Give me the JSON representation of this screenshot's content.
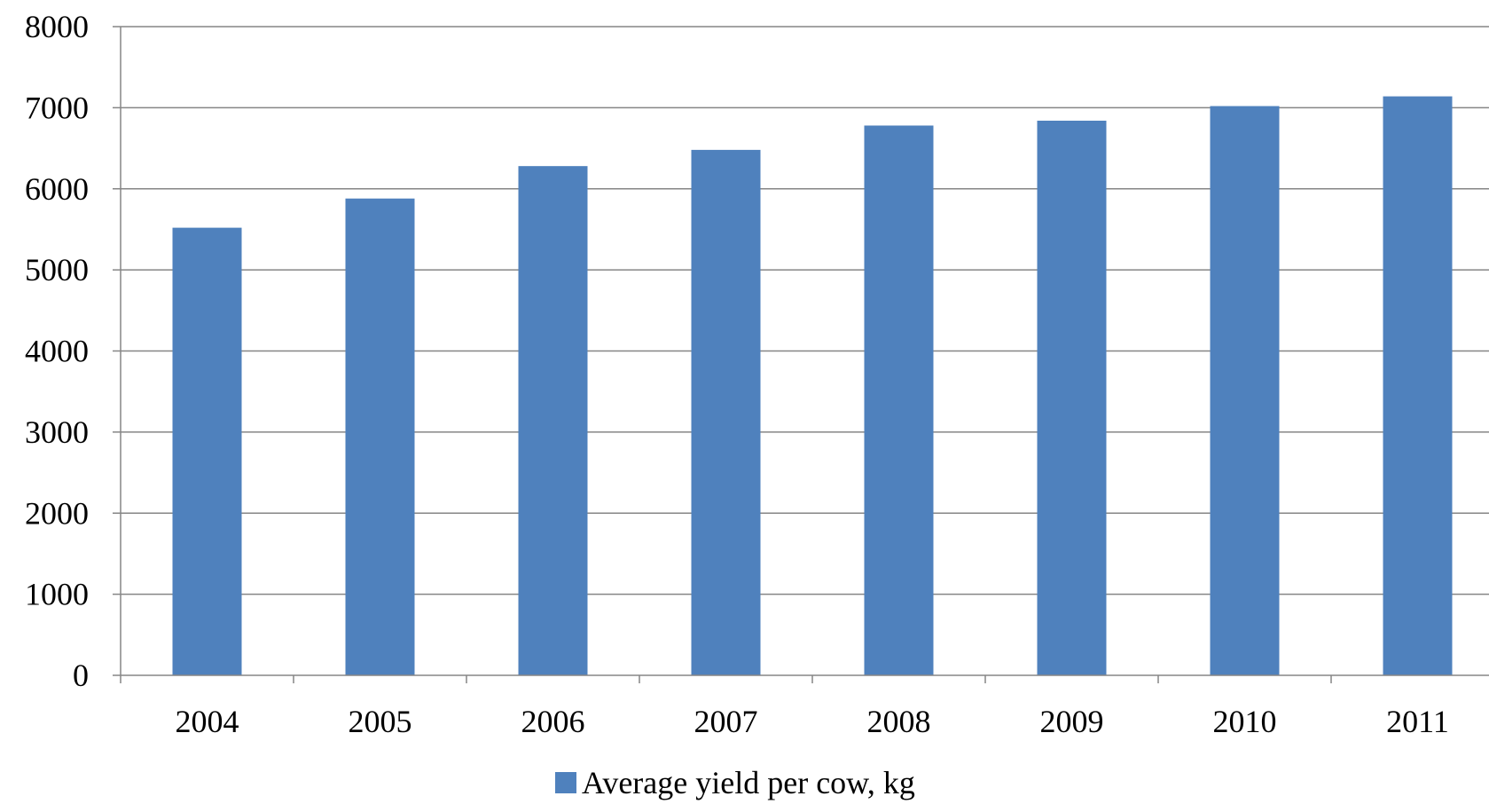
{
  "chart_data": {
    "type": "bar",
    "title": "",
    "xlabel": "",
    "ylabel": "",
    "categories": [
      "2004",
      "2005",
      "2006",
      "2007",
      "2008",
      "2009",
      "2010",
      "2011"
    ],
    "series": [
      {
        "name": "Average yield per cow, kg",
        "values": [
          5520,
          5880,
          6280,
          6480,
          6780,
          6840,
          7020,
          7140
        ]
      }
    ],
    "ylim": [
      0,
      8000
    ],
    "yticks": [
      "0",
      "1000",
      "2000",
      "3000",
      "4000",
      "5000",
      "6000",
      "7000",
      "8000"
    ],
    "grid": true,
    "legend_position": "bottom",
    "colors": {
      "bar": "#4f81bd",
      "grid": "#868686",
      "axis": "#868686"
    }
  }
}
